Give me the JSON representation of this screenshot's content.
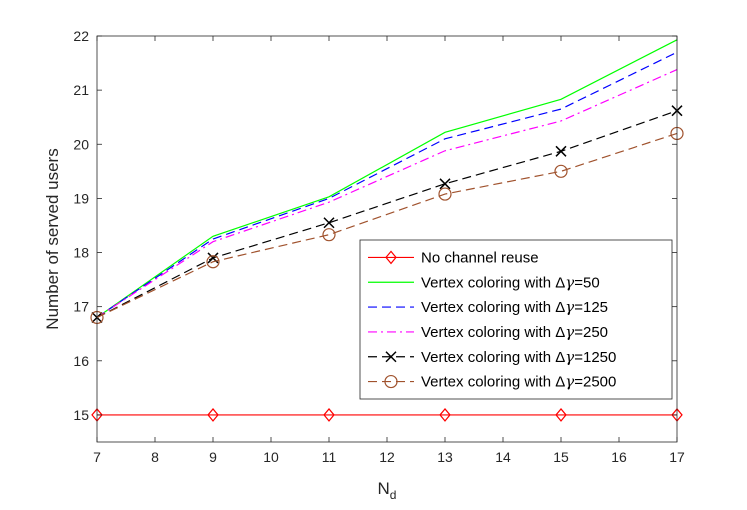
{
  "chart_data": {
    "type": "line",
    "title": "",
    "xlabel": "N",
    "xlabel_sub": "d",
    "ylabel": "Number of served users",
    "xlim": [
      7,
      17
    ],
    "ylim": [
      14.5,
      22
    ],
    "xticks": [
      "7",
      "8",
      "9",
      "10",
      "11",
      "12",
      "13",
      "14",
      "15",
      "16",
      "17"
    ],
    "yticks": [
      "15",
      "16",
      "17",
      "18",
      "19",
      "20",
      "21",
      "22"
    ],
    "x": [
      7,
      9,
      11,
      13,
      15,
      17
    ],
    "grid": false,
    "legend_position": "center-right",
    "series": [
      {
        "name": "No channel reuse",
        "legend_prefix": "No channel reuse",
        "legend_suffix": "",
        "color": "#ff0000",
        "dash": "solid",
        "marker": "diamond",
        "values": [
          15,
          15,
          15,
          15,
          15,
          15
        ]
      },
      {
        "name": "Vertex coloring with Δγ=50",
        "legend_prefix": "Vertex coloring with Δ",
        "legend_suffix": "=50",
        "color": "#00ff00",
        "dash": "solid",
        "marker": "none",
        "values": [
          16.8,
          18.3,
          19.03,
          20.22,
          20.83,
          21.93
        ]
      },
      {
        "name": "Vertex coloring with Δγ=125",
        "legend_prefix": "Vertex coloring with Δ",
        "legend_suffix": "=125",
        "color": "#0000ff",
        "dash": "dashed",
        "marker": "none",
        "values": [
          16.8,
          18.25,
          19.0,
          20.1,
          20.65,
          21.7
        ]
      },
      {
        "name": "Vertex coloring with Δγ=250",
        "legend_prefix": "Vertex coloring with Δ",
        "legend_suffix": "=250",
        "color": "#ff00ff",
        "dash": "dashdot",
        "marker": "none",
        "values": [
          16.8,
          18.2,
          18.93,
          19.88,
          20.43,
          21.38
        ]
      },
      {
        "name": "Vertex coloring with Δγ=1250",
        "legend_prefix": "Vertex coloring with Δ",
        "legend_suffix": "=1250",
        "color": "#000000",
        "dash": "dashed",
        "marker": "x",
        "values": [
          16.8,
          17.9,
          18.55,
          19.27,
          19.87,
          20.62
        ]
      },
      {
        "name": "Vertex coloring with Δγ=2500",
        "legend_prefix": "Vertex coloring with Δ",
        "legend_suffix": "=2500",
        "color": "#a0522d",
        "dash": "dashed",
        "marker": "circle",
        "values": [
          16.8,
          17.83,
          18.33,
          19.08,
          19.5,
          20.2
        ]
      }
    ],
    "legend_gamma_symbol": "γ"
  }
}
